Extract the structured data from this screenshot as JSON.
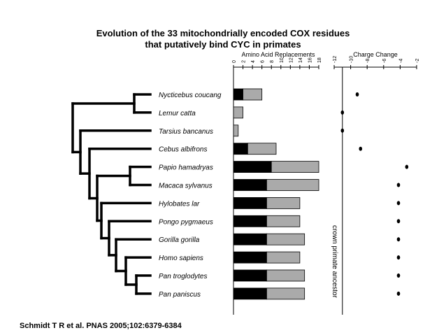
{
  "title": {
    "line1": "Evolution of the 33 mitochondrially encoded COX residues",
    "line2": "that putatively bind CYC in primates"
  },
  "citation": "Schmidt T R et al. PNAS 2005;102:6379-6384",
  "chart_data": {
    "type": "bar",
    "categories": [
      "Nycticebus coucang",
      "Lemur catta",
      "Tarsius bancanus",
      "Cebus albifrons",
      "Papio hamadryas",
      "Macaca sylvanus",
      "Hylobates lar",
      "Pongo pygmaeus",
      "Gorilla gorilla",
      "Homo sapiens",
      "Pan troglodytes",
      "Pan paniscus"
    ],
    "panels": [
      {
        "title": "Amino Acid Replacements",
        "xlim": [
          0,
          18
        ],
        "ticks": [
          "0",
          "2",
          "4",
          "6",
          "8",
          "10",
          "12",
          "14",
          "16",
          "18"
        ],
        "stacked": true,
        "series": [
          {
            "color": "#000000",
            "values": [
              2,
              0,
              0,
              3,
              8,
              7,
              7,
              7,
              7,
              7,
              7,
              7
            ]
          },
          {
            "color": "#aaaaaa",
            "values": [
              4,
              2,
              1,
              6,
              10,
              11,
              7,
              7,
              8,
              7,
              8,
              8
            ]
          }
        ]
      },
      {
        "title": "Charge Change",
        "type": "scatter",
        "xlim": [
          -12,
          -2
        ],
        "ticks": [
          "-12",
          "-10",
          "-8",
          "-6",
          "-4",
          "-2"
        ],
        "values": [
          -9.2,
          -11,
          -11,
          -8.8,
          -3.2,
          -4.2,
          -4.2,
          -4.2,
          -4.2,
          -4.2,
          -4.2,
          -4.2
        ],
        "reference_line": {
          "value": -11,
          "label": "crown primate ancestor"
        }
      }
    ]
  }
}
